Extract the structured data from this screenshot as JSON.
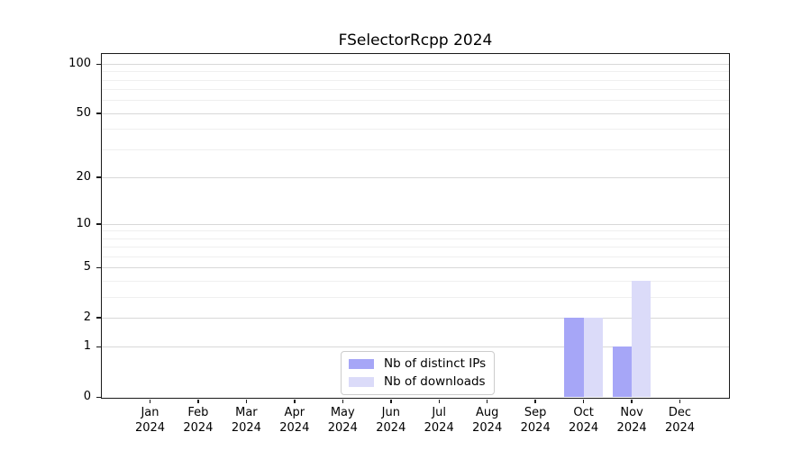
{
  "chart_data": {
    "type": "bar",
    "title": "FSelectorRcpp 2024",
    "categories": [
      "Jan 2024",
      "Feb 2024",
      "Mar 2024",
      "Apr 2024",
      "May 2024",
      "Jun 2024",
      "Jul 2024",
      "Aug 2024",
      "Sep 2024",
      "Oct 2024",
      "Nov 2024",
      "Dec 2024"
    ],
    "series": [
      {
        "name": "Nb of distinct IPs",
        "color": "#a6a6f7",
        "values": [
          0,
          0,
          0,
          0,
          0,
          0,
          0,
          0,
          0,
          2,
          1,
          0
        ]
      },
      {
        "name": "Nb of downloads",
        "color": "#dbdbf9",
        "values": [
          0,
          0,
          0,
          0,
          0,
          0,
          0,
          0,
          0,
          2,
          4,
          0
        ]
      }
    ],
    "xlabel": "",
    "ylabel": "",
    "yscale": "log1p",
    "y_major_ticks": [
      0,
      1,
      2,
      5,
      10,
      20,
      50,
      100
    ],
    "y_minor_ticks": [
      3,
      4,
      6,
      7,
      8,
      9,
      30,
      40,
      60,
      70,
      80,
      90
    ],
    "ylim": [
      0,
      115
    ],
    "grid": "horizontal",
    "legend_position": "lower center"
  }
}
